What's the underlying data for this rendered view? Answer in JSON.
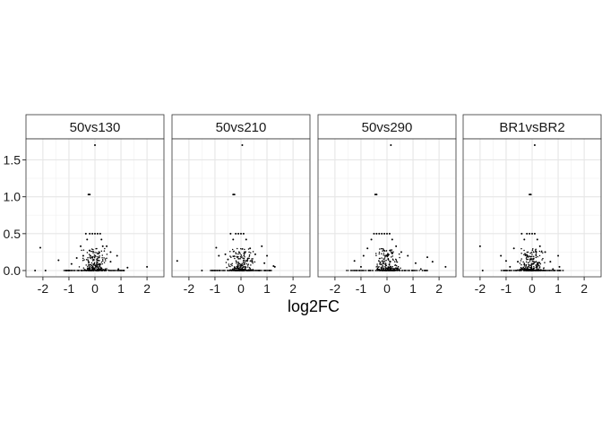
{
  "chart_data": {
    "type": "scatter",
    "facets": [
      "50vs130",
      "50vs210",
      "50vs290",
      "BR1vsBR2"
    ],
    "xlabel": "log2FC",
    "ylabel": "",
    "xlim": [
      -2.65,
      2.65
    ],
    "ylim": [
      -0.085,
      1.785
    ],
    "xticks": [
      -2,
      -1,
      0,
      1,
      2
    ],
    "xtick_labels": [
      "-2",
      "-1",
      "0",
      "1",
      "2"
    ],
    "yticks": [
      0,
      0.5,
      1,
      1.5
    ],
    "ytick_labels": [
      "0.0",
      "0.5",
      "1.0",
      "1.5"
    ],
    "grid": true,
    "theme": "bw",
    "point_color": "#000000",
    "panels": [
      {
        "name": "50vs130",
        "points": [
          [
            0.0,
            1.7
          ],
          [
            -0.25,
            1.03
          ],
          [
            -0.2,
            1.03
          ],
          [
            -2.1,
            0.31
          ],
          [
            -1.4,
            0.14
          ],
          [
            -0.9,
            0.09
          ],
          [
            -0.7,
            0.17
          ],
          [
            -0.55,
            0.33
          ],
          [
            -0.45,
            0.2
          ],
          [
            -0.35,
            0.5
          ],
          [
            -0.3,
            0.42
          ],
          [
            -0.2,
            0.5
          ],
          [
            -0.1,
            0.5
          ],
          [
            0.0,
            0.5
          ],
          [
            0.1,
            0.5
          ],
          [
            0.2,
            0.5
          ],
          [
            0.25,
            0.42
          ],
          [
            0.3,
            0.33
          ],
          [
            0.45,
            0.33
          ],
          [
            0.6,
            0.25
          ],
          [
            0.85,
            0.2
          ],
          [
            0.6,
            0.12
          ],
          [
            1.25,
            0.04
          ],
          [
            2.0,
            0.05
          ],
          [
            0.9,
            0.02
          ],
          [
            -1.9,
            0.0
          ],
          [
            -2.3,
            0.0
          ],
          [
            -1.1,
            0.0
          ]
        ]
      },
      {
        "name": "50vs210",
        "points": [
          [
            0.05,
            1.7
          ],
          [
            -0.3,
            1.03
          ],
          [
            -0.25,
            1.03
          ],
          [
            -2.45,
            0.13
          ],
          [
            -1.5,
            0.0
          ],
          [
            -0.85,
            0.2
          ],
          [
            -0.95,
            0.31
          ],
          [
            -0.6,
            0.22
          ],
          [
            -0.5,
            0.15
          ],
          [
            -0.4,
            0.5
          ],
          [
            -0.2,
            0.5
          ],
          [
            -0.1,
            0.5
          ],
          [
            0.0,
            0.5
          ],
          [
            0.1,
            0.5
          ],
          [
            -0.3,
            0.42
          ],
          [
            0.2,
            0.42
          ],
          [
            0.35,
            0.3
          ],
          [
            0.55,
            0.22
          ],
          [
            0.8,
            0.33
          ],
          [
            1.0,
            0.2
          ],
          [
            0.9,
            0.1
          ],
          [
            1.3,
            0.05
          ],
          [
            1.25,
            0.06
          ]
        ]
      },
      {
        "name": "50vs290",
        "points": [
          [
            0.15,
            1.7
          ],
          [
            -0.45,
            1.03
          ],
          [
            -0.4,
            1.03
          ],
          [
            -1.25,
            0.13
          ],
          [
            -1.0,
            0.05
          ],
          [
            -0.9,
            0.2
          ],
          [
            -0.75,
            0.3
          ],
          [
            -0.6,
            0.42
          ],
          [
            -0.5,
            0.5
          ],
          [
            -0.4,
            0.5
          ],
          [
            -0.3,
            0.5
          ],
          [
            -0.2,
            0.5
          ],
          [
            -0.1,
            0.5
          ],
          [
            0.0,
            0.5
          ],
          [
            0.1,
            0.5
          ],
          [
            0.2,
            0.42
          ],
          [
            0.35,
            0.33
          ],
          [
            0.55,
            0.25
          ],
          [
            0.8,
            0.2
          ],
          [
            1.1,
            0.1
          ],
          [
            1.55,
            0.18
          ],
          [
            1.75,
            0.12
          ],
          [
            2.25,
            0.05
          ],
          [
            1.3,
            0.02
          ]
        ]
      },
      {
        "name": "BR1vsBR2",
        "points": [
          [
            0.1,
            1.7
          ],
          [
            -0.1,
            1.03
          ],
          [
            -0.05,
            1.03
          ],
          [
            -2.0,
            0.33
          ],
          [
            -1.2,
            0.2
          ],
          [
            -1.0,
            0.13
          ],
          [
            -0.85,
            0.05
          ],
          [
            -0.7,
            0.3
          ],
          [
            -0.55,
            0.12
          ],
          [
            -0.4,
            0.5
          ],
          [
            -0.3,
            0.42
          ],
          [
            -0.2,
            0.5
          ],
          [
            -0.1,
            0.5
          ],
          [
            0.0,
            0.5
          ],
          [
            0.1,
            0.5
          ],
          [
            0.2,
            0.42
          ],
          [
            0.3,
            0.33
          ],
          [
            0.5,
            0.25
          ],
          [
            0.7,
            0.12
          ],
          [
            1.0,
            0.2
          ],
          [
            1.05,
            0.05
          ],
          [
            0.8,
            0.02
          ],
          [
            -1.9,
            0.0
          ]
        ]
      }
    ]
  }
}
